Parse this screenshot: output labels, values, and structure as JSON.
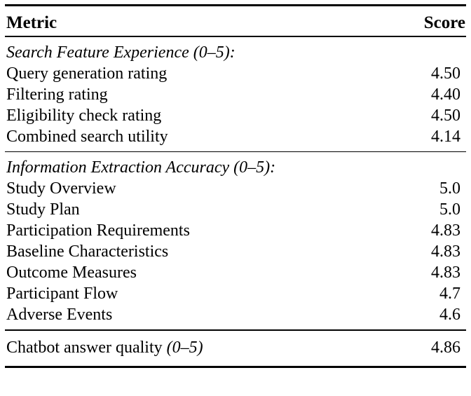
{
  "page": {
    "background_color": "#ffffff",
    "text_color": "#000000"
  },
  "table": {
    "header": {
      "metric": "Metric",
      "score": "Score"
    },
    "sections": [
      {
        "title": "Search Feature Experience (0–5):",
        "rows": [
          {
            "label": "Query generation rating",
            "value": "4.50"
          },
          {
            "label": "Filtering rating",
            "value": "4.40"
          },
          {
            "label": "Eligibility check rating",
            "value": "4.50"
          },
          {
            "label": "Combined search utility",
            "value": "4.14"
          }
        ]
      },
      {
        "title": "Information Extraction Accuracy (0–5):",
        "rows": [
          {
            "label": "Study Overview",
            "value": "5.0"
          },
          {
            "label": "Study Plan",
            "value": "5.0"
          },
          {
            "label": "Participation Requirements",
            "value": "4.83"
          },
          {
            "label": "Baseline Characteristics",
            "value": "4.83"
          },
          {
            "label": "Outcome Measures",
            "value": "4.83"
          },
          {
            "label": "Participant Flow",
            "value": "4.7"
          },
          {
            "label": "Adverse Events",
            "value": "4.6"
          }
        ]
      }
    ],
    "footer": {
      "label": "Chatbot answer quality",
      "label_italic": "(0–5)",
      "value": "4.86"
    }
  }
}
